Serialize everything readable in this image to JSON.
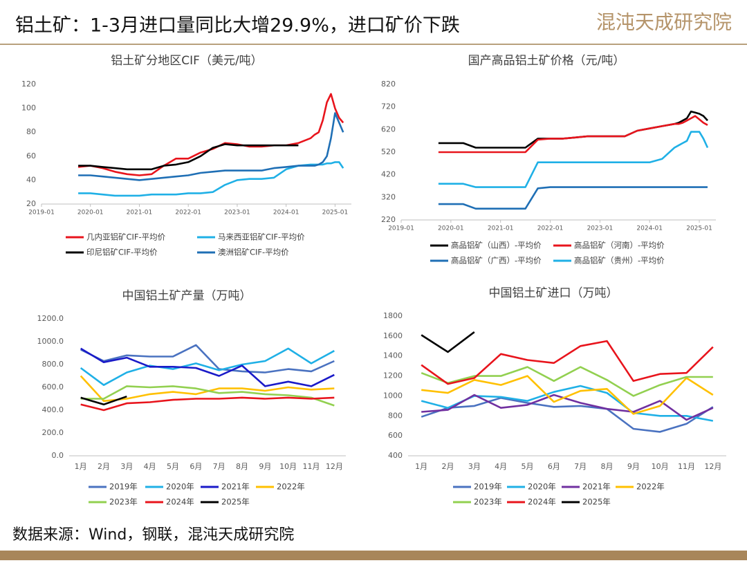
{
  "header": {
    "title": "铝土矿：1-3月进口量同比大增29.9%，进口矿价下跌",
    "logo": "混沌天成研究院"
  },
  "footer": {
    "source": "数据来源：Wind，钢联，混沌天成研究院"
  },
  "chart_data": [
    {
      "type": "line",
      "title": "铝土矿分地区CIF（美元/吨）",
      "x": [
        "2019-10",
        "2020-01",
        "2020-04",
        "2020-07",
        "2020-10",
        "2021-01",
        "2021-04",
        "2021-07",
        "2021-10",
        "2022-01",
        "2022-04",
        "2022-07",
        "2022-10",
        "2023-01",
        "2023-04",
        "2023-07",
        "2023-10",
        "2024-01",
        "2024-04",
        "2024-07",
        "2024-08",
        "2024-09",
        "2024-10",
        "2024-11",
        "2024-12",
        "2025-01",
        "2025-02",
        "2025-03"
      ],
      "xlim": [
        "2019-01",
        "2025-05"
      ],
      "xticks": [
        "2019-01",
        "2020-01",
        "2021-01",
        "2022-01",
        "2023-01",
        "2024-01",
        "2025-01"
      ],
      "ylim": [
        20,
        120
      ],
      "yticks": [
        20,
        40,
        60,
        80,
        100,
        120
      ],
      "series": [
        {
          "name": "几内亚铝矿CIF-平均价",
          "color": "#e8141c",
          "values": [
            51,
            52,
            50,
            47,
            45,
            44,
            45,
            52,
            58,
            58,
            63,
            66,
            71,
            70,
            68,
            68,
            69,
            69,
            71,
            75,
            78,
            80,
            90,
            105,
            112,
            100,
            92,
            88
          ]
        },
        {
          "name": "马来西亚铝矿CIF-平均价",
          "color": "#1fb0e6",
          "values": [
            29,
            29,
            28,
            27,
            27,
            27,
            28,
            28,
            28,
            29,
            29,
            30,
            36,
            40,
            41,
            41,
            42,
            49,
            52,
            53,
            53,
            53,
            53,
            54,
            54,
            55,
            55,
            50
          ]
        },
        {
          "name": "印尼铝矿CIF-平均价",
          "color": "#000000",
          "values": [
            52,
            52,
            51,
            50,
            49,
            49,
            49,
            52,
            53,
            55,
            60,
            67,
            70,
            69,
            69,
            69,
            69,
            69,
            69,
            null,
            null,
            null,
            null,
            null,
            null,
            null,
            null,
            null
          ]
        },
        {
          "name": "澳洲铝矿CIF-平均价",
          "color": "#1f6fb5",
          "values": [
            44,
            44,
            43,
            42,
            41,
            40,
            41,
            42,
            43,
            44,
            46,
            47,
            48,
            48,
            48,
            48,
            50,
            51,
            52,
            52,
            52,
            53,
            55,
            60,
            75,
            96,
            88,
            80
          ]
        }
      ]
    },
    {
      "type": "line",
      "title": "国产高品铝土矿价格（元/吨）",
      "x": [
        "2019-10",
        "2020-01",
        "2020-04",
        "2020-07",
        "2020-10",
        "2021-01",
        "2021-04",
        "2021-07",
        "2021-10",
        "2022-01",
        "2022-04",
        "2022-07",
        "2022-10",
        "2023-01",
        "2023-04",
        "2023-07",
        "2023-10",
        "2024-01",
        "2024-04",
        "2024-07",
        "2024-08",
        "2024-09",
        "2024-10",
        "2024-11",
        "2024-12",
        "2025-01",
        "2025-02",
        "2025-03"
      ],
      "xlim": [
        "2019-01",
        "2025-05"
      ],
      "xticks": [
        "2019-01",
        "2020-01",
        "2021-01",
        "2022-01",
        "2023-01",
        "2024-01",
        "2025-01"
      ],
      "ylim": [
        220,
        820
      ],
      "yticks": [
        220,
        320,
        420,
        520,
        620,
        720,
        820
      ],
      "series": [
        {
          "name": "高品铝矿（山西）-平均价",
          "color": "#000000",
          "values": [
            560,
            560,
            560,
            540,
            540,
            540,
            540,
            540,
            580,
            580,
            580,
            585,
            590,
            590,
            590,
            590,
            615,
            625,
            635,
            645,
            650,
            660,
            670,
            700,
            695,
            690,
            680,
            660
          ]
        },
        {
          "name": "高品铝矿（河南）-平均价",
          "color": "#e8141c",
          "values": [
            520,
            520,
            520,
            520,
            520,
            520,
            520,
            520,
            575,
            580,
            580,
            585,
            590,
            590,
            590,
            590,
            615,
            625,
            635,
            645,
            645,
            650,
            660,
            670,
            680,
            665,
            650,
            640
          ]
        },
        {
          "name": "高品铝矿（广西）-平均价",
          "color": "#1f6fb5",
          "values": [
            290,
            290,
            290,
            270,
            270,
            270,
            270,
            270,
            360,
            365,
            365,
            365,
            365,
            365,
            365,
            365,
            365,
            365,
            365,
            365,
            365,
            365,
            365,
            365,
            365,
            365,
            365,
            365
          ]
        },
        {
          "name": "高品铝矿（贵州）-平均价",
          "color": "#1fb0e6",
          "values": [
            380,
            380,
            380,
            365,
            365,
            365,
            365,
            365,
            475,
            475,
            475,
            475,
            475,
            475,
            475,
            475,
            475,
            475,
            490,
            540,
            550,
            560,
            570,
            610,
            610,
            610,
            580,
            540
          ]
        }
      ]
    },
    {
      "type": "line",
      "title": "中国铝土矿产量（万吨）",
      "categories": [
        "1月",
        "2月",
        "3月",
        "4月",
        "5月",
        "6月",
        "7月",
        "8月",
        "9月",
        "10月",
        "11月",
        "12月"
      ],
      "ylim": [
        0,
        1200
      ],
      "yticks": [
        {
          "value": 0,
          "label": "0.0"
        },
        {
          "value": 200,
          "label": "200.0"
        },
        {
          "value": 400,
          "label": "400.0"
        },
        {
          "value": 600,
          "label": "600.0"
        },
        {
          "value": 800,
          "label": "800.0"
        },
        {
          "value": 1000,
          "label": "1000.0"
        },
        {
          "value": 1200,
          "label": "1200.0"
        }
      ],
      "series": [
        {
          "name": "2019年",
          "color": "#4a72c0",
          "values": [
            930,
            830,
            880,
            870,
            870,
            970,
            760,
            740,
            730,
            760,
            740,
            830
          ]
        },
        {
          "name": "2020年",
          "color": "#1fb0e6",
          "values": [
            770,
            620,
            730,
            790,
            760,
            810,
            750,
            800,
            830,
            940,
            810,
            920
          ]
        },
        {
          "name": "2021年",
          "color": "#1a1ac8",
          "values": [
            940,
            820,
            860,
            780,
            780,
            770,
            700,
            790,
            610,
            650,
            610,
            710
          ]
        },
        {
          "name": "2022年",
          "color": "#ffc000",
          "values": [
            700,
            480,
            500,
            540,
            560,
            540,
            590,
            590,
            570,
            600,
            580,
            590
          ]
        },
        {
          "name": "2023年",
          "color": "#92d050",
          "values": [
            500,
            500,
            610,
            600,
            610,
            590,
            550,
            560,
            540,
            530,
            510,
            440
          ]
        },
        {
          "name": "2024年",
          "color": "#e8141c",
          "values": [
            450,
            400,
            460,
            470,
            490,
            500,
            500,
            510,
            500,
            510,
            500,
            510
          ]
        },
        {
          "name": "2025年",
          "color": "#000000",
          "values": [
            510,
            450,
            520,
            null,
            null,
            null,
            null,
            null,
            null,
            null,
            null,
            null
          ]
        }
      ]
    },
    {
      "type": "line",
      "title": "中国铝土矿进口（万吨）",
      "categories": [
        "1月",
        "2月",
        "3月",
        "4月",
        "5月",
        "6月",
        "7月",
        "8月",
        "9月",
        "10月",
        "11月",
        "12月"
      ],
      "ylim": [
        400,
        1800
      ],
      "yticks": [
        400,
        600,
        800,
        1000,
        1200,
        1400,
        1600,
        1800
      ],
      "series": [
        {
          "name": "2019年",
          "color": "#4a72c0",
          "values": [
            790,
            880,
            900,
            980,
            930,
            890,
            900,
            870,
            670,
            640,
            720,
            890
          ]
        },
        {
          "name": "2020年",
          "color": "#1fb0e6",
          "values": [
            950,
            880,
            1000,
            990,
            950,
            1040,
            1100,
            1030,
            830,
            800,
            800,
            750
          ]
        },
        {
          "name": "2021年",
          "color": "#7030a0",
          "values": [
            840,
            860,
            1010,
            880,
            910,
            1010,
            930,
            870,
            840,
            950,
            760,
            880
          ]
        },
        {
          "name": "2022年",
          "color": "#ffc000",
          "values": [
            1060,
            1030,
            1160,
            1110,
            1200,
            940,
            1050,
            1070,
            820,
            900,
            1180,
            1010
          ]
        },
        {
          "name": "2023年",
          "color": "#92d050",
          "values": [
            1230,
            1130,
            1200,
            1200,
            1290,
            1150,
            1290,
            1160,
            1000,
            1110,
            1190,
            1190
          ]
        },
        {
          "name": "2024年",
          "color": "#e8141c",
          "values": [
            1310,
            1120,
            1180,
            1420,
            1360,
            1330,
            1500,
            1550,
            1150,
            1220,
            1230,
            1490
          ]
        },
        {
          "name": "2025年",
          "color": "#000000",
          "values": [
            1610,
            1440,
            1640,
            null,
            null,
            null,
            null,
            null,
            null,
            null,
            null,
            null
          ]
        }
      ]
    }
  ]
}
